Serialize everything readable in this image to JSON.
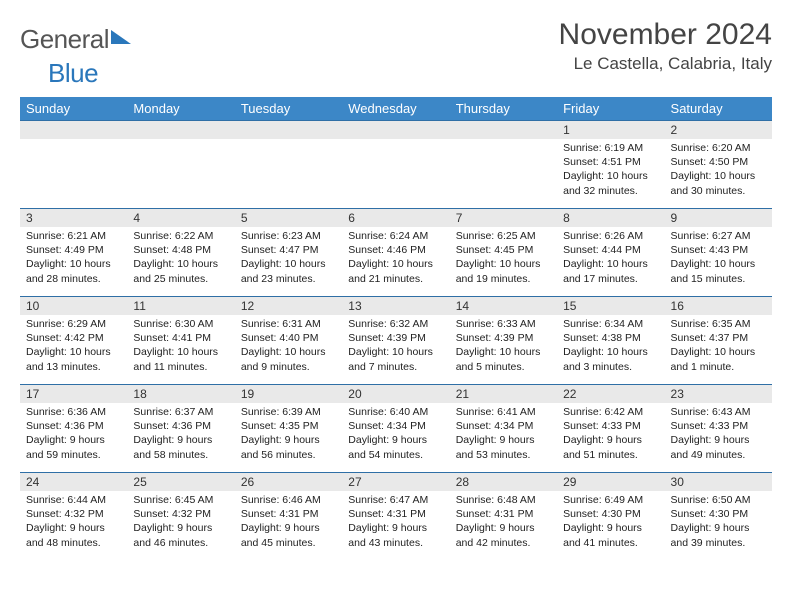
{
  "logo": {
    "text1": "General",
    "text2": "Blue"
  },
  "title": "November 2024",
  "location": "Le Castella, Calabria, Italy",
  "colors": {
    "header_bg": "#3c87c7",
    "row_border": "#2f6fa6",
    "daynum_bg": "#e9e9e9",
    "logo_accent": "#2a77bb"
  },
  "weekdays": [
    "Sunday",
    "Monday",
    "Tuesday",
    "Wednesday",
    "Thursday",
    "Friday",
    "Saturday"
  ],
  "weeks": [
    [
      null,
      null,
      null,
      null,
      null,
      {
        "n": "1",
        "lines": [
          "Sunrise: 6:19 AM",
          "Sunset: 4:51 PM",
          "Daylight: 10 hours",
          "and 32 minutes."
        ]
      },
      {
        "n": "2",
        "lines": [
          "Sunrise: 6:20 AM",
          "Sunset: 4:50 PM",
          "Daylight: 10 hours",
          "and 30 minutes."
        ]
      }
    ],
    [
      {
        "n": "3",
        "lines": [
          "Sunrise: 6:21 AM",
          "Sunset: 4:49 PM",
          "Daylight: 10 hours",
          "and 28 minutes."
        ]
      },
      {
        "n": "4",
        "lines": [
          "Sunrise: 6:22 AM",
          "Sunset: 4:48 PM",
          "Daylight: 10 hours",
          "and 25 minutes."
        ]
      },
      {
        "n": "5",
        "lines": [
          "Sunrise: 6:23 AM",
          "Sunset: 4:47 PM",
          "Daylight: 10 hours",
          "and 23 minutes."
        ]
      },
      {
        "n": "6",
        "lines": [
          "Sunrise: 6:24 AM",
          "Sunset: 4:46 PM",
          "Daylight: 10 hours",
          "and 21 minutes."
        ]
      },
      {
        "n": "7",
        "lines": [
          "Sunrise: 6:25 AM",
          "Sunset: 4:45 PM",
          "Daylight: 10 hours",
          "and 19 minutes."
        ]
      },
      {
        "n": "8",
        "lines": [
          "Sunrise: 6:26 AM",
          "Sunset: 4:44 PM",
          "Daylight: 10 hours",
          "and 17 minutes."
        ]
      },
      {
        "n": "9",
        "lines": [
          "Sunrise: 6:27 AM",
          "Sunset: 4:43 PM",
          "Daylight: 10 hours",
          "and 15 minutes."
        ]
      }
    ],
    [
      {
        "n": "10",
        "lines": [
          "Sunrise: 6:29 AM",
          "Sunset: 4:42 PM",
          "Daylight: 10 hours",
          "and 13 minutes."
        ]
      },
      {
        "n": "11",
        "lines": [
          "Sunrise: 6:30 AM",
          "Sunset: 4:41 PM",
          "Daylight: 10 hours",
          "and 11 minutes."
        ]
      },
      {
        "n": "12",
        "lines": [
          "Sunrise: 6:31 AM",
          "Sunset: 4:40 PM",
          "Daylight: 10 hours",
          "and 9 minutes."
        ]
      },
      {
        "n": "13",
        "lines": [
          "Sunrise: 6:32 AM",
          "Sunset: 4:39 PM",
          "Daylight: 10 hours",
          "and 7 minutes."
        ]
      },
      {
        "n": "14",
        "lines": [
          "Sunrise: 6:33 AM",
          "Sunset: 4:39 PM",
          "Daylight: 10 hours",
          "and 5 minutes."
        ]
      },
      {
        "n": "15",
        "lines": [
          "Sunrise: 6:34 AM",
          "Sunset: 4:38 PM",
          "Daylight: 10 hours",
          "and 3 minutes."
        ]
      },
      {
        "n": "16",
        "lines": [
          "Sunrise: 6:35 AM",
          "Sunset: 4:37 PM",
          "Daylight: 10 hours",
          "and 1 minute."
        ]
      }
    ],
    [
      {
        "n": "17",
        "lines": [
          "Sunrise: 6:36 AM",
          "Sunset: 4:36 PM",
          "Daylight: 9 hours",
          "and 59 minutes."
        ]
      },
      {
        "n": "18",
        "lines": [
          "Sunrise: 6:37 AM",
          "Sunset: 4:36 PM",
          "Daylight: 9 hours",
          "and 58 minutes."
        ]
      },
      {
        "n": "19",
        "lines": [
          "Sunrise: 6:39 AM",
          "Sunset: 4:35 PM",
          "Daylight: 9 hours",
          "and 56 minutes."
        ]
      },
      {
        "n": "20",
        "lines": [
          "Sunrise: 6:40 AM",
          "Sunset: 4:34 PM",
          "Daylight: 9 hours",
          "and 54 minutes."
        ]
      },
      {
        "n": "21",
        "lines": [
          "Sunrise: 6:41 AM",
          "Sunset: 4:34 PM",
          "Daylight: 9 hours",
          "and 53 minutes."
        ]
      },
      {
        "n": "22",
        "lines": [
          "Sunrise: 6:42 AM",
          "Sunset: 4:33 PM",
          "Daylight: 9 hours",
          "and 51 minutes."
        ]
      },
      {
        "n": "23",
        "lines": [
          "Sunrise: 6:43 AM",
          "Sunset: 4:33 PM",
          "Daylight: 9 hours",
          "and 49 minutes."
        ]
      }
    ],
    [
      {
        "n": "24",
        "lines": [
          "Sunrise: 6:44 AM",
          "Sunset: 4:32 PM",
          "Daylight: 9 hours",
          "and 48 minutes."
        ]
      },
      {
        "n": "25",
        "lines": [
          "Sunrise: 6:45 AM",
          "Sunset: 4:32 PM",
          "Daylight: 9 hours",
          "and 46 minutes."
        ]
      },
      {
        "n": "26",
        "lines": [
          "Sunrise: 6:46 AM",
          "Sunset: 4:31 PM",
          "Daylight: 9 hours",
          "and 45 minutes."
        ]
      },
      {
        "n": "27",
        "lines": [
          "Sunrise: 6:47 AM",
          "Sunset: 4:31 PM",
          "Daylight: 9 hours",
          "and 43 minutes."
        ]
      },
      {
        "n": "28",
        "lines": [
          "Sunrise: 6:48 AM",
          "Sunset: 4:31 PM",
          "Daylight: 9 hours",
          "and 42 minutes."
        ]
      },
      {
        "n": "29",
        "lines": [
          "Sunrise: 6:49 AM",
          "Sunset: 4:30 PM",
          "Daylight: 9 hours",
          "and 41 minutes."
        ]
      },
      {
        "n": "30",
        "lines": [
          "Sunrise: 6:50 AM",
          "Sunset: 4:30 PM",
          "Daylight: 9 hours",
          "and 39 minutes."
        ]
      }
    ]
  ]
}
